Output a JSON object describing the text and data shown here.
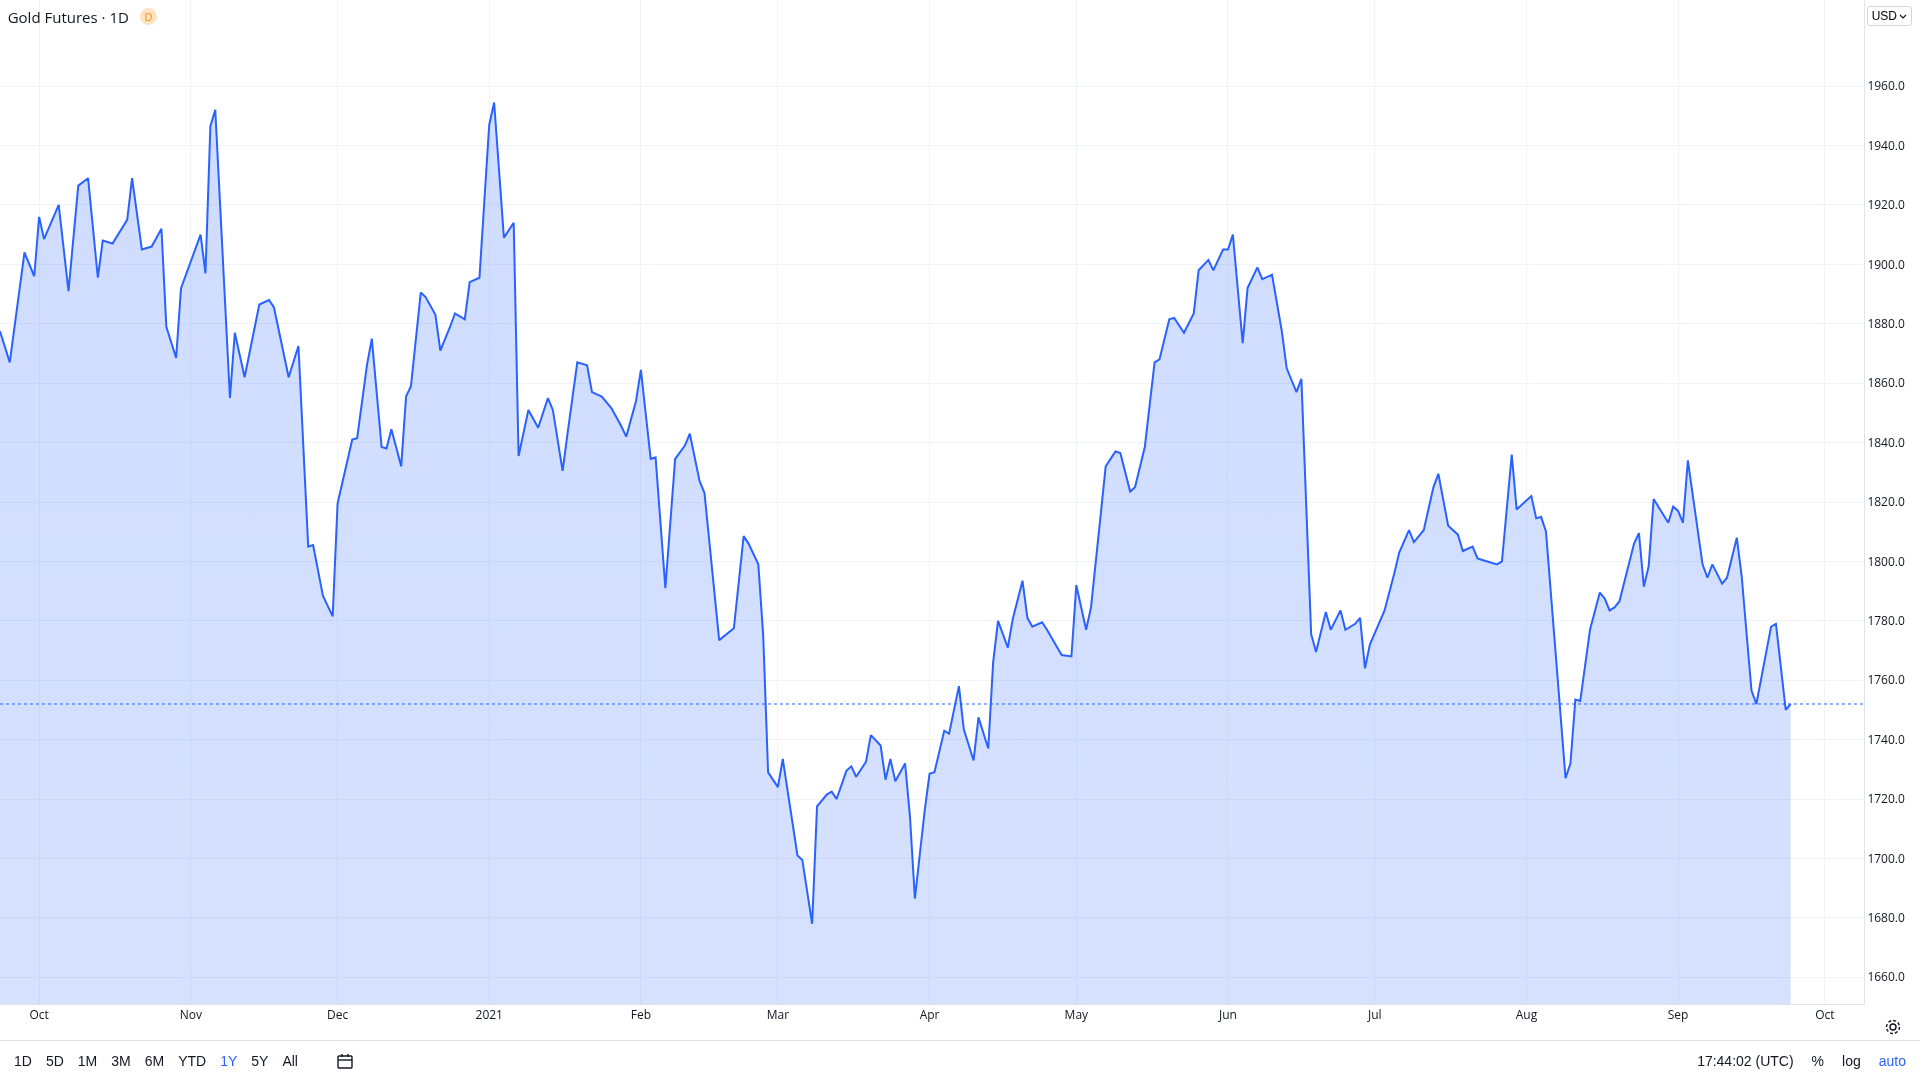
{
  "chart_data": {
    "type": "area",
    "title": "Gold Futures · 1D",
    "annotations": [
      "1D",
      "5D",
      "1M",
      "3M",
      "6M",
      "YTD",
      "1Y",
      "5Y",
      "All",
      "17:44:02 (UTC)",
      "%",
      "log",
      "auto",
      "USD",
      "D"
    ],
    "x": [
      "2020-09-23",
      "2020-09-25",
      "2020-09-28",
      "2020-09-30",
      "2020-10-01",
      "2020-10-02",
      "2020-10-05",
      "2020-10-07",
      "2020-10-09",
      "2020-10-11",
      "2020-10-13",
      "2020-10-14",
      "2020-10-16",
      "2020-10-19",
      "2020-10-20",
      "2020-10-22",
      "2020-10-24",
      "2020-10-26",
      "2020-10-27",
      "2020-10-29",
      "2020-10-30",
      "2020-11-03",
      "2020-11-04",
      "2020-11-05",
      "2020-11-06",
      "2020-11-09",
      "2020-11-10",
      "2020-11-12",
      "2020-11-15",
      "2020-11-17",
      "2020-11-18",
      "2020-11-21",
      "2020-11-23",
      "2020-11-25",
      "2020-11-26",
      "2020-11-28",
      "2020-11-30",
      "2020-12-01",
      "2020-12-04",
      "2020-12-05",
      "2020-12-07",
      "2020-12-08",
      "2020-12-10",
      "2020-12-11",
      "2020-12-12",
      "2020-12-14",
      "2020-12-15",
      "2020-12-16",
      "2020-12-18",
      "2020-12-19",
      "2020-12-21",
      "2020-12-22",
      "2020-12-24",
      "2020-12-25",
      "2020-12-27",
      "2020-12-28",
      "2020-12-30",
      "2021-01-01",
      "2021-01-02",
      "2021-01-04",
      "2021-01-06",
      "2021-01-07",
      "2021-01-09",
      "2021-01-11",
      "2021-01-13",
      "2021-01-14",
      "2021-01-16",
      "2021-01-17",
      "2021-01-19",
      "2021-01-21",
      "2021-01-22",
      "2021-01-24",
      "2021-01-26",
      "2021-01-28",
      "2021-01-29",
      "2021-01-31",
      "2021-02-01",
      "2021-02-03",
      "2021-02-04",
      "2021-02-06",
      "2021-02-08",
      "2021-02-10",
      "2021-02-11",
      "2021-02-13",
      "2021-02-14",
      "2021-02-17",
      "2021-02-20",
      "2021-02-22",
      "2021-02-23",
      "2021-02-25",
      "2021-02-26",
      "2021-02-27",
      "2021-03-01",
      "2021-03-02",
      "2021-03-05",
      "2021-03-06",
      "2021-03-08",
      "2021-03-09",
      "2021-03-11",
      "2021-03-12",
      "2021-03-13",
      "2021-03-15",
      "2021-03-16",
      "2021-03-17",
      "2021-03-19",
      "2021-03-20",
      "2021-03-22",
      "2021-03-23",
      "2021-03-24",
      "2021-03-25",
      "2021-03-27",
      "2021-03-28",
      "2021-03-29",
      "2021-03-31",
      "2021-04-01",
      "2021-04-02",
      "2021-04-04",
      "2021-04-05",
      "2021-04-07",
      "2021-04-08",
      "2021-04-10",
      "2021-04-11",
      "2021-04-13",
      "2021-04-14",
      "2021-04-15",
      "2021-04-17",
      "2021-04-18",
      "2021-04-20",
      "2021-04-21",
      "2021-04-22",
      "2021-04-24",
      "2021-04-25",
      "2021-04-28",
      "2021-04-30",
      "2021-05-01",
      "2021-05-03",
      "2021-05-04",
      "2021-05-06",
      "2021-05-07",
      "2021-05-09",
      "2021-05-10",
      "2021-05-12",
      "2021-05-13",
      "2021-05-15",
      "2021-05-17",
      "2021-05-18",
      "2021-05-20",
      "2021-05-21",
      "2021-05-23",
      "2021-05-25",
      "2021-05-26",
      "2021-05-28",
      "2021-05-29",
      "2021-05-31",
      "2021-06-01",
      "2021-06-02",
      "2021-06-04",
      "2021-06-05",
      "2021-06-07",
      "2021-06-08",
      "2021-06-10",
      "2021-06-12",
      "2021-06-13",
      "2021-06-15",
      "2021-06-16",
      "2021-06-18",
      "2021-06-19",
      "2021-06-21",
      "2021-06-22",
      "2021-06-24",
      "2021-06-25",
      "2021-06-27",
      "2021-06-28",
      "2021-06-29",
      "2021-06-30",
      "2021-07-03",
      "2021-07-05",
      "2021-07-06",
      "2021-07-08",
      "2021-07-09",
      "2021-07-11",
      "2021-07-13",
      "2021-07-14",
      "2021-07-16",
      "2021-07-18",
      "2021-07-19",
      "2021-07-21",
      "2021-07-22",
      "2021-07-23",
      "2021-07-26",
      "2021-07-27",
      "2021-07-29",
      "2021-07-30",
      "2021-08-02",
      "2021-08-03",
      "2021-08-04",
      "2021-08-05",
      "2021-08-09",
      "2021-08-10",
      "2021-08-11",
      "2021-08-12",
      "2021-08-14",
      "2021-08-16",
      "2021-08-17",
      "2021-08-18",
      "2021-08-19",
      "2021-08-20",
      "2021-08-23",
      "2021-08-24",
      "2021-08-25",
      "2021-08-26",
      "2021-08-27",
      "2021-08-30",
      "2021-08-31",
      "2021-09-01",
      "2021-09-02",
      "2021-09-03",
      "2021-09-06",
      "2021-09-07",
      "2021-09-08",
      "2021-09-10",
      "2021-09-11",
      "2021-09-13",
      "2021-09-14",
      "2021-09-16",
      "2021-09-17",
      "2021-09-20",
      "2021-09-21",
      "2021-09-23",
      "2021-09-24"
    ],
    "series": [
      {
        "color": "#2962ff",
        "values": [
          1877.5,
          1867,
          1904,
          1896,
          1916,
          1908.5,
          1920,
          1891,
          1926.5,
          1929,
          1895.5,
          1908,
          1907,
          1915,
          1929,
          1905,
          1906,
          1912,
          1879,
          1868.5,
          1892,
          1910,
          1897,
          1946.5,
          1952,
          1855,
          1877,
          1862,
          1886.5,
          1888,
          1885.5,
          1862,
          1872.5,
          1805,
          1805.5,
          1788.5,
          1781.5,
          1819.5,
          1841,
          1841.5,
          1866,
          1875,
          1838.5,
          1838,
          1844.5,
          1832,
          1855.5,
          1859,
          1890.5,
          1889,
          1883,
          1871,
          1879,
          1883.5,
          1881.5,
          1894,
          1895.5,
          1947,
          1954.5,
          1909,
          1914,
          1835.5,
          1851,
          1845,
          1855,
          1851,
          1830.5,
          1843,
          1867,
          1866,
          1857,
          1855.5,
          1851.5,
          1845.5,
          1842,
          1854,
          1864.5,
          1834.5,
          1835,
          1791,
          1834.5,
          1839,
          1843,
          1827,
          1823,
          1773.5,
          1777.5,
          1808.5,
          1806,
          1799,
          1775,
          1729,
          1724,
          1733.5,
          1701,
          1699.5,
          1678,
          1717.5,
          1721.5,
          1722.5,
          1720,
          1729.5,
          1731,
          1727.5,
          1732.5,
          1741.5,
          1738,
          1726.5,
          1733.5,
          1726,
          1732,
          1714,
          1686.5,
          1716,
          1728.5,
          1729,
          1743,
          1742,
          1758,
          1743.5,
          1733,
          1747.5,
          1737,
          1766,
          1780,
          1771,
          1780.5,
          1793.5,
          1781,
          1778,
          1779.5,
          1777,
          1768.5,
          1768,
          1792,
          1777,
          1784.5,
          1816,
          1832,
          1837,
          1836.5,
          1823.5,
          1825,
          1838.5,
          1867,
          1868,
          1881.5,
          1882,
          1877,
          1883.5,
          1898,
          1901.5,
          1898,
          1905,
          1905,
          1910,
          1873.5,
          1892,
          1899,
          1895,
          1896.5,
          1877.5,
          1865,
          1857,
          1861.5,
          1775.5,
          1769.5,
          1783,
          1777,
          1783.5,
          1777,
          1779,
          1781,
          1764,
          1772,
          1783.5,
          1796,
          1803,
          1810.5,
          1806.5,
          1810.5,
          1825,
          1829.5,
          1812,
          1809,
          1803.5,
          1805,
          1801,
          1800.5,
          1799,
          1800,
          1836,
          1817.5,
          1822,
          1814.5,
          1815,
          1810,
          1727,
          1732,
          1753.5,
          1753,
          1777,
          1789.5,
          1787.5,
          1783.5,
          1784.5,
          1786.5,
          1806,
          1809.5,
          1791.5,
          1798.5,
          1821,
          1813,
          1818.5,
          1817,
          1813,
          1834,
          1799,
          1794.5,
          1799,
          1792.5,
          1794.5,
          1808,
          1795,
          1756.5,
          1752,
          1778,
          1779,
          1750,
          1752
        ]
      }
    ],
    "xlim": [
      "2020-09-23",
      "2021-10-09"
    ],
    "xticks": [
      {
        "value": "2020-10-01",
        "label": "Oct"
      },
      {
        "value": "2020-11-01",
        "label": "Nov"
      },
      {
        "value": "2020-12-01",
        "label": "Dec"
      },
      {
        "value": "2021-01-01",
        "label": "2021"
      },
      {
        "value": "2021-02-01",
        "label": "Feb"
      },
      {
        "value": "2021-03-01",
        "label": "Mar"
      },
      {
        "value": "2021-04-01",
        "label": "Apr"
      },
      {
        "value": "2021-05-01",
        "label": "May"
      },
      {
        "value": "2021-06-01",
        "label": "Jun"
      },
      {
        "value": "2021-07-01",
        "label": "Jul"
      },
      {
        "value": "2021-08-01",
        "label": "Aug"
      },
      {
        "value": "2021-09-01",
        "label": "Sep"
      },
      {
        "value": "2021-10-01",
        "label": "Oct"
      }
    ],
    "ylim": [
      1651,
      1989
    ],
    "yticks": [
      {
        "value": 1660,
        "label": "1660.0"
      },
      {
        "value": 1680,
        "label": "1680.0"
      },
      {
        "value": 1700,
        "label": "1700.0"
      },
      {
        "value": 1720,
        "label": "1720.0"
      },
      {
        "value": 1740,
        "label": "1740.0"
      },
      {
        "value": 1760,
        "label": "1760.0"
      },
      {
        "value": 1780,
        "label": "1780.0"
      },
      {
        "value": 1800,
        "label": "1800.0"
      },
      {
        "value": 1820,
        "label": "1820.0"
      },
      {
        "value": 1840,
        "label": "1840.0"
      },
      {
        "value": 1860,
        "label": "1860.0"
      },
      {
        "value": 1880,
        "label": "1880.0"
      },
      {
        "value": 1900,
        "label": "1900.0"
      },
      {
        "value": 1920,
        "label": "1920.0"
      },
      {
        "value": 1940,
        "label": "1940.0"
      },
      {
        "value": 1960,
        "label": "1960.0"
      }
    ],
    "grid": true,
    "marker": "none",
    "ref_lines": [
      {
        "axis": "y",
        "value": 1752,
        "color": "#2962ff",
        "line_style": "dotted"
      }
    ]
  }
}
